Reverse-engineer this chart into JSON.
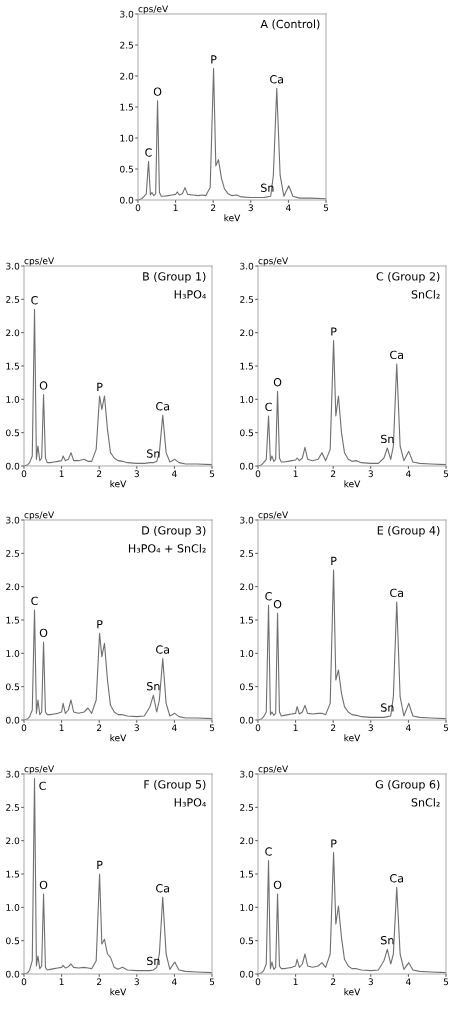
{
  "chart_data": [
    {
      "type": "line",
      "title": "A (Control)",
      "xlabel": "keV",
      "ylabel": "cps/eV",
      "xlim": [
        0,
        5
      ],
      "ylim": [
        0,
        3.0
      ],
      "xticks": [
        0,
        1,
        2,
        3,
        4,
        5
      ],
      "yticks": [
        {
          "value": 0,
          "label": "0.0"
        },
        0.5,
        {
          "value": 1,
          "label": "1.0"
        },
        1.5,
        {
          "value": 2,
          "label": "2.0"
        },
        2.5,
        {
          "value": 3,
          "label": "3.0"
        }
      ],
      "series": [
        {
          "color": "#707070",
          "x": [
            0,
            0.1,
            0.15,
            0.22,
            0.28,
            0.33,
            0.37,
            0.42,
            0.47,
            0.52,
            0.57,
            0.62,
            0.7,
            0.8,
            0.9,
            1.0,
            1.04,
            1.1,
            1.18,
            1.25,
            1.32,
            1.45,
            1.6,
            1.7,
            1.8,
            1.92,
            2.01,
            2.07,
            2.14,
            2.22,
            2.3,
            2.4,
            2.5,
            2.62,
            2.75,
            3.0,
            3.2,
            3.35,
            3.44,
            3.53,
            3.6,
            3.69,
            3.78,
            3.88,
            4.01,
            4.12,
            4.3,
            4.6,
            5.0
          ],
          "values": [
            0,
            0.02,
            0.05,
            0.1,
            0.62,
            0.08,
            0.12,
            0.07,
            0.1,
            1.6,
            0.12,
            0.06,
            0.06,
            0.07,
            0.08,
            0.09,
            0.13,
            0.08,
            0.1,
            0.2,
            0.09,
            0.08,
            0.07,
            0.08,
            0.07,
            0.2,
            2.12,
            0.55,
            0.65,
            0.35,
            0.18,
            0.1,
            0.07,
            0.08,
            0.05,
            0.04,
            0.04,
            0.04,
            0.05,
            0.06,
            0.4,
            1.8,
            0.4,
            0.06,
            0.23,
            0.06,
            0.03,
            0.03,
            0.02
          ]
        }
      ],
      "annotations": [
        {
          "text": "C",
          "x": 0.28,
          "y": 0.62
        },
        {
          "text": "O",
          "x": 0.52,
          "y": 1.6
        },
        {
          "text": "P",
          "x": 2.01,
          "y": 2.12
        },
        {
          "text": "Ca",
          "x": 3.69,
          "y": 1.8
        },
        {
          "text": "Sn",
          "x": 3.44,
          "y": 0.05
        }
      ]
    },
    {
      "type": "line",
      "title": "B (Group 1)",
      "subtitle": "H₃PO₄",
      "xlabel": "keV",
      "ylabel": "cps/eV",
      "xlim": [
        0,
        5
      ],
      "ylim": [
        0,
        3.0
      ],
      "xticks": [
        0,
        1,
        2,
        3,
        4,
        5
      ],
      "yticks": [
        {
          "value": 0,
          "label": "0.0"
        },
        0.5,
        {
          "value": 1,
          "label": "1.0"
        },
        1.5,
        {
          "value": 2,
          "label": "2.0"
        },
        2.5,
        {
          "value": 3,
          "label": "3.0"
        }
      ],
      "series": [
        {
          "color": "#707070",
          "x": [
            0,
            0.1,
            0.15,
            0.22,
            0.28,
            0.33,
            0.37,
            0.42,
            0.47,
            0.52,
            0.57,
            0.62,
            0.7,
            0.8,
            0.9,
            1.0,
            1.04,
            1.1,
            1.18,
            1.25,
            1.32,
            1.45,
            1.6,
            1.7,
            1.8,
            1.92,
            2.01,
            2.07,
            2.14,
            2.22,
            2.3,
            2.4,
            2.5,
            2.62,
            2.75,
            3.0,
            3.2,
            3.35,
            3.44,
            3.53,
            3.6,
            3.69,
            3.78,
            3.88,
            4.01,
            4.12,
            4.3,
            4.6,
            5.0
          ],
          "values": [
            0,
            0.02,
            0.05,
            0.15,
            2.35,
            0.1,
            0.3,
            0.08,
            0.12,
            1.07,
            0.12,
            0.05,
            0.05,
            0.06,
            0.07,
            0.08,
            0.15,
            0.08,
            0.1,
            0.2,
            0.08,
            0.08,
            0.1,
            0.07,
            0.07,
            0.25,
            1.05,
            0.85,
            1.05,
            0.55,
            0.2,
            0.12,
            0.08,
            0.07,
            0.05,
            0.04,
            0.04,
            0.05,
            0.05,
            0.07,
            0.2,
            0.76,
            0.2,
            0.06,
            0.1,
            0.05,
            0.03,
            0.03,
            0.02
          ]
        }
      ],
      "annotations": [
        {
          "text": "C",
          "x": 0.28,
          "y": 2.35
        },
        {
          "text": "O",
          "x": 0.52,
          "y": 1.07
        },
        {
          "text": "P",
          "x": 2.01,
          "y": 1.05
        },
        {
          "text": "Ca",
          "x": 3.69,
          "y": 0.76
        },
        {
          "text": "Sn",
          "x": 3.44,
          "y": 0.05
        }
      ]
    },
    {
      "type": "line",
      "title": "C (Group 2)",
      "subtitle": "SnCl₂",
      "xlabel": "keV",
      "ylabel": "cps/eV",
      "xlim": [
        0,
        5
      ],
      "ylim": [
        0,
        3.0
      ],
      "xticks": [
        0,
        1,
        2,
        3,
        4,
        5
      ],
      "yticks": [
        {
          "value": 0,
          "label": "0.0"
        },
        0.5,
        {
          "value": 1,
          "label": "1.0"
        },
        1.5,
        {
          "value": 2,
          "label": "2.0"
        },
        2.5,
        {
          "value": 3,
          "label": "3.0"
        }
      ],
      "series": [
        {
          "color": "#707070",
          "x": [
            0,
            0.1,
            0.15,
            0.22,
            0.28,
            0.33,
            0.37,
            0.42,
            0.47,
            0.52,
            0.57,
            0.62,
            0.7,
            0.8,
            0.9,
            1.0,
            1.04,
            1.1,
            1.18,
            1.25,
            1.32,
            1.45,
            1.6,
            1.7,
            1.8,
            1.92,
            2.01,
            2.07,
            2.14,
            2.22,
            2.3,
            2.4,
            2.5,
            2.62,
            2.75,
            3.0,
            3.2,
            3.35,
            3.44,
            3.53,
            3.6,
            3.69,
            3.78,
            3.88,
            4.01,
            4.12,
            4.3,
            4.6,
            5.0
          ],
          "values": [
            0,
            0.02,
            0.05,
            0.1,
            0.75,
            0.08,
            0.15,
            0.07,
            0.1,
            1.12,
            0.12,
            0.06,
            0.06,
            0.07,
            0.08,
            0.09,
            0.12,
            0.08,
            0.12,
            0.28,
            0.1,
            0.08,
            0.1,
            0.2,
            0.08,
            0.25,
            1.88,
            0.75,
            1.05,
            0.5,
            0.2,
            0.1,
            0.07,
            0.08,
            0.05,
            0.04,
            0.04,
            0.12,
            0.27,
            0.1,
            0.3,
            1.53,
            0.3,
            0.08,
            0.22,
            0.06,
            0.04,
            0.03,
            0.02
          ]
        }
      ],
      "annotations": [
        {
          "text": "C",
          "x": 0.28,
          "y": 0.75
        },
        {
          "text": "O",
          "x": 0.52,
          "y": 1.12
        },
        {
          "text": "P",
          "x": 2.01,
          "y": 1.88
        },
        {
          "text": "Ca",
          "x": 3.69,
          "y": 1.53
        },
        {
          "text": "Sn",
          "x": 3.44,
          "y": 0.27
        }
      ]
    },
    {
      "type": "line",
      "title": "D (Group 3)",
      "subtitle": "H₃PO₄ + SnCl₂",
      "xlabel": "keV",
      "ylabel": "cps/eV",
      "xlim": [
        0,
        5
      ],
      "ylim": [
        0,
        3.0
      ],
      "xticks": [
        0,
        1,
        2,
        3,
        4,
        5
      ],
      "yticks": [
        {
          "value": 0,
          "label": "0.0"
        },
        0.5,
        {
          "value": 1,
          "label": "1.0"
        },
        1.5,
        {
          "value": 2,
          "label": "2.0"
        },
        2.5,
        {
          "value": 3,
          "label": "3.0"
        }
      ],
      "series": [
        {
          "color": "#707070",
          "x": [
            0,
            0.1,
            0.15,
            0.22,
            0.28,
            0.33,
            0.37,
            0.42,
            0.47,
            0.52,
            0.57,
            0.62,
            0.7,
            0.8,
            0.9,
            1.0,
            1.04,
            1.1,
            1.18,
            1.25,
            1.32,
            1.45,
            1.6,
            1.7,
            1.8,
            1.92,
            2.01,
            2.07,
            2.14,
            2.22,
            2.3,
            2.4,
            2.5,
            2.62,
            2.75,
            3.0,
            3.2,
            3.35,
            3.44,
            3.53,
            3.6,
            3.69,
            3.78,
            3.88,
            4.01,
            4.12,
            4.3,
            4.6,
            5.0
          ],
          "values": [
            0,
            0.02,
            0.05,
            0.15,
            1.65,
            0.1,
            0.3,
            0.08,
            0.12,
            1.17,
            0.12,
            0.08,
            0.08,
            0.09,
            0.1,
            0.12,
            0.25,
            0.1,
            0.15,
            0.3,
            0.12,
            0.1,
            0.12,
            0.18,
            0.1,
            0.3,
            1.3,
            0.95,
            1.15,
            0.6,
            0.22,
            0.12,
            0.08,
            0.08,
            0.06,
            0.05,
            0.06,
            0.2,
            0.37,
            0.12,
            0.3,
            0.92,
            0.25,
            0.06,
            0.1,
            0.05,
            0.03,
            0.03,
            0.02
          ]
        }
      ],
      "annotations": [
        {
          "text": "C",
          "x": 0.28,
          "y": 1.65
        },
        {
          "text": "O",
          "x": 0.52,
          "y": 1.17
        },
        {
          "text": "P",
          "x": 2.01,
          "y": 1.3
        },
        {
          "text": "Ca",
          "x": 3.69,
          "y": 0.92
        },
        {
          "text": "Sn",
          "x": 3.44,
          "y": 0.37
        }
      ]
    },
    {
      "type": "line",
      "title": "E (Group 4)",
      "xlabel": "keV",
      "ylabel": "cps/eV",
      "xlim": [
        0,
        5
      ],
      "ylim": [
        0,
        3.0
      ],
      "xticks": [
        0,
        1,
        2,
        3,
        4,
        5
      ],
      "yticks": [
        {
          "value": 0,
          "label": "0.0"
        },
        0.5,
        {
          "value": 1,
          "label": "1.0"
        },
        1.5,
        {
          "value": 2,
          "label": "2.0"
        },
        2.5,
        {
          "value": 3,
          "label": "3.0"
        }
      ],
      "series": [
        {
          "color": "#707070",
          "x": [
            0,
            0.1,
            0.15,
            0.22,
            0.28,
            0.33,
            0.37,
            0.42,
            0.47,
            0.52,
            0.57,
            0.62,
            0.7,
            0.8,
            0.9,
            1.0,
            1.04,
            1.1,
            1.18,
            1.25,
            1.32,
            1.45,
            1.6,
            1.7,
            1.8,
            1.92,
            2.01,
            2.07,
            2.14,
            2.22,
            2.3,
            2.4,
            2.5,
            2.62,
            2.75,
            3.0,
            3.2,
            3.35,
            3.44,
            3.53,
            3.6,
            3.69,
            3.78,
            3.88,
            4.01,
            4.12,
            4.3,
            4.6,
            5.0
          ],
          "values": [
            0,
            0.02,
            0.05,
            0.12,
            1.72,
            0.08,
            0.12,
            0.07,
            0.1,
            1.6,
            0.12,
            0.06,
            0.07,
            0.08,
            0.09,
            0.1,
            0.2,
            0.09,
            0.12,
            0.22,
            0.1,
            0.09,
            0.1,
            0.1,
            0.08,
            0.25,
            2.25,
            0.6,
            0.75,
            0.4,
            0.2,
            0.12,
            0.08,
            0.07,
            0.05,
            0.04,
            0.04,
            0.04,
            0.05,
            0.06,
            0.35,
            1.77,
            0.35,
            0.06,
            0.25,
            0.06,
            0.04,
            0.03,
            0.02
          ]
        }
      ],
      "annotations": [
        {
          "text": "C",
          "x": 0.28,
          "y": 1.72
        },
        {
          "text": "O",
          "x": 0.52,
          "y": 1.6
        },
        {
          "text": "P",
          "x": 2.01,
          "y": 2.25
        },
        {
          "text": "Ca",
          "x": 3.69,
          "y": 1.77
        },
        {
          "text": "Sn",
          "x": 3.44,
          "y": 0.05
        }
      ]
    },
    {
      "type": "line",
      "title": "F (Group 5)",
      "subtitle": "H₃PO₄",
      "xlabel": "keV",
      "ylabel": "cps/eV",
      "xlim": [
        0,
        5
      ],
      "ylim": [
        0,
        3.0
      ],
      "xticks": [
        0,
        1,
        2,
        3,
        4,
        5
      ],
      "yticks": [
        {
          "value": 0,
          "label": "0.0"
        },
        0.5,
        {
          "value": 1,
          "label": "1.0"
        },
        1.5,
        {
          "value": 2,
          "label": "2.0"
        },
        2.5,
        {
          "value": 3,
          "label": "3.0"
        }
      ],
      "series": [
        {
          "color": "#707070",
          "x": [
            0,
            0.1,
            0.15,
            0.22,
            0.28,
            0.33,
            0.37,
            0.42,
            0.47,
            0.52,
            0.57,
            0.62,
            0.7,
            0.8,
            0.9,
            1.0,
            1.04,
            1.1,
            1.18,
            1.25,
            1.32,
            1.45,
            1.6,
            1.7,
            1.8,
            1.92,
            2.01,
            2.07,
            2.14,
            2.22,
            2.3,
            2.4,
            2.5,
            2.62,
            2.75,
            3.0,
            3.2,
            3.35,
            3.44,
            3.53,
            3.6,
            3.69,
            3.78,
            3.88,
            4.01,
            4.12,
            4.3,
            4.6,
            5.0
          ],
          "values": [
            0,
            0.02,
            0.06,
            0.2,
            2.93,
            0.12,
            0.27,
            0.08,
            0.12,
            1.2,
            0.1,
            0.06,
            0.07,
            0.08,
            0.09,
            0.1,
            0.13,
            0.09,
            0.11,
            0.15,
            0.1,
            0.09,
            0.1,
            0.09,
            0.08,
            0.2,
            1.5,
            0.45,
            0.52,
            0.3,
            0.25,
            0.1,
            0.07,
            0.1,
            0.06,
            0.05,
            0.05,
            0.05,
            0.06,
            0.1,
            0.3,
            1.15,
            0.3,
            0.07,
            0.18,
            0.06,
            0.04,
            0.03,
            0.02
          ]
        }
      ],
      "annotations": [
        {
          "text": "C",
          "x": 0.28,
          "y": 2.93
        },
        {
          "text": "O",
          "x": 0.52,
          "y": 1.2
        },
        {
          "text": "P",
          "x": 2.01,
          "y": 1.5
        },
        {
          "text": "Ca",
          "x": 3.69,
          "y": 1.15
        },
        {
          "text": "Sn",
          "x": 3.44,
          "y": 0.06
        }
      ]
    },
    {
      "type": "line",
      "title": "G (Group 6)",
      "subtitle": "SnCl₂",
      "xlabel": "keV",
      "ylabel": "cps/eV",
      "xlim": [
        0,
        5
      ],
      "ylim": [
        0,
        3.0
      ],
      "xticks": [
        0,
        1,
        2,
        3,
        4,
        5
      ],
      "yticks": [
        {
          "value": 0,
          "label": "0.0"
        },
        0.5,
        {
          "value": 1,
          "label": "1.0"
        },
        1.5,
        {
          "value": 2,
          "label": "2.0"
        },
        2.5,
        {
          "value": 3,
          "label": "3.0"
        }
      ],
      "series": [
        {
          "color": "#707070",
          "x": [
            0,
            0.1,
            0.15,
            0.22,
            0.28,
            0.33,
            0.37,
            0.42,
            0.47,
            0.52,
            0.57,
            0.62,
            0.7,
            0.8,
            0.9,
            1.0,
            1.04,
            1.1,
            1.18,
            1.25,
            1.32,
            1.45,
            1.6,
            1.7,
            1.8,
            1.92,
            2.01,
            2.07,
            2.14,
            2.22,
            2.3,
            2.4,
            2.5,
            2.62,
            2.75,
            3.0,
            3.2,
            3.35,
            3.44,
            3.53,
            3.6,
            3.69,
            3.78,
            3.88,
            4.01,
            4.12,
            4.3,
            4.6,
            5.0
          ],
          "values": [
            0,
            0.02,
            0.05,
            0.15,
            1.7,
            0.08,
            0.18,
            0.07,
            0.1,
            1.2,
            0.12,
            0.08,
            0.08,
            0.09,
            0.1,
            0.12,
            0.22,
            0.1,
            0.15,
            0.3,
            0.12,
            0.1,
            0.12,
            0.17,
            0.1,
            0.3,
            1.82,
            0.75,
            1.02,
            0.55,
            0.22,
            0.12,
            0.08,
            0.08,
            0.06,
            0.05,
            0.06,
            0.2,
            0.37,
            0.15,
            0.3,
            1.3,
            0.3,
            0.07,
            0.17,
            0.06,
            0.04,
            0.03,
            0.02
          ]
        }
      ],
      "annotations": [
        {
          "text": "C",
          "x": 0.28,
          "y": 1.7
        },
        {
          "text": "O",
          "x": 0.52,
          "y": 1.2
        },
        {
          "text": "P",
          "x": 2.01,
          "y": 1.82
        },
        {
          "text": "Ca",
          "x": 3.69,
          "y": 1.3
        },
        {
          "text": "Sn",
          "x": 3.44,
          "y": 0.37
        }
      ]
    }
  ]
}
